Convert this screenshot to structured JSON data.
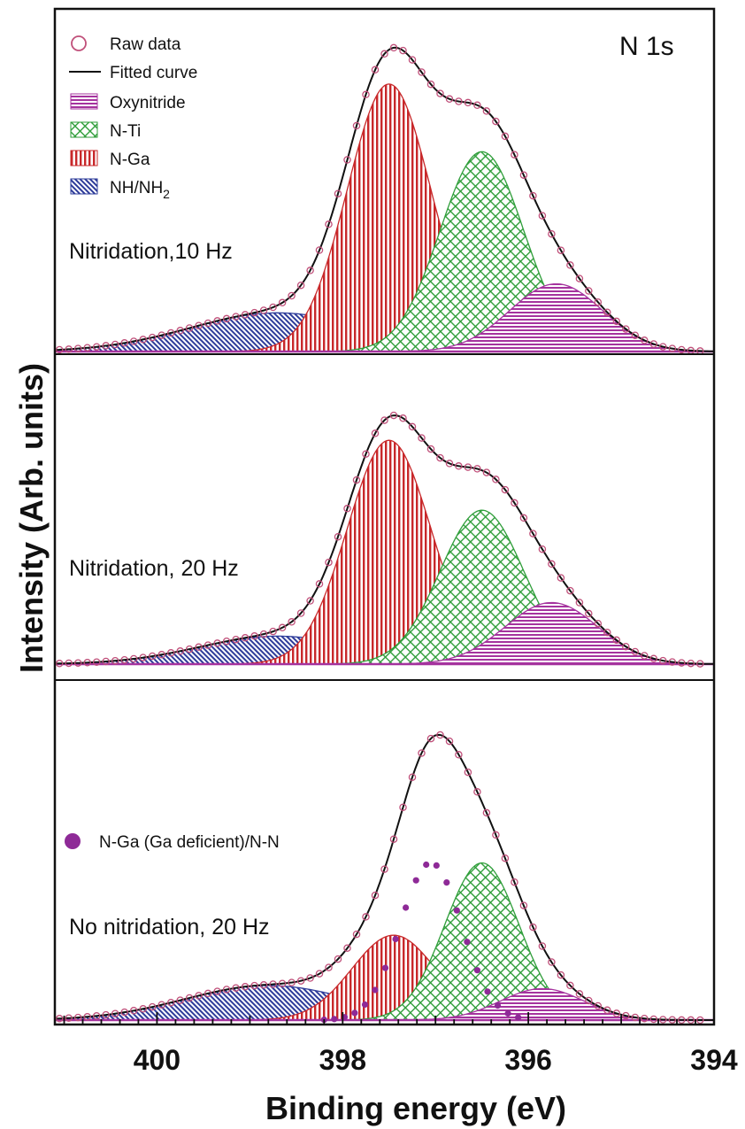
{
  "chart_data": {
    "type": "area",
    "title": "",
    "core_level_label": "N 1s",
    "xlabel": "Binding energy (eV)",
    "ylabel": "Intensity (Arb. units)",
    "x_reversed": true,
    "xlim": [
      401.1,
      394
    ],
    "x_ticks": [
      400,
      398,
      396,
      394
    ],
    "x_tick_labels": [
      "400",
      "398",
      "396",
      "394"
    ],
    "y_units": "arbitrary (relative 0-1 per panel)",
    "legend_placement": "top-left",
    "legend": [
      {
        "key": "raw",
        "label": "Raw data",
        "marker": "open-circle"
      },
      {
        "key": "fit",
        "label": "Fitted curve",
        "marker": "line"
      },
      {
        "key": "oxynitride",
        "label": "Oxynitride",
        "marker": "horizontal-hatch"
      },
      {
        "key": "nti",
        "label": "N-Ti",
        "marker": "crosshatch"
      },
      {
        "key": "nga",
        "label": "N-Ga",
        "marker": "vertical-hatch"
      },
      {
        "key": "nh",
        "label_main": "NH/NH",
        "label_sub": "2",
        "marker": "diagonal-hatch"
      }
    ],
    "extra_legend": {
      "label": "N-Ga (Ga deficient)/N-N",
      "marker": "filled-dot"
    },
    "colors": {
      "raw": "#c0507a",
      "fit": "#111111",
      "oxynitride": "#a5339e",
      "nti": "#2f9e3a",
      "nga": "#c8282a",
      "nh": "#2e3c9a",
      "ngadef": "#8e2a97"
    },
    "panels": [
      {
        "label": "Nitridation,10 Hz",
        "peaks": [
          {
            "component": "nh",
            "center": 398.7,
            "height": 0.12,
            "width": 0.95
          },
          {
            "component": "nga",
            "center": 397.5,
            "height": 0.83,
            "width": 0.45
          },
          {
            "component": "nti",
            "center": 396.5,
            "height": 0.62,
            "width": 0.45
          },
          {
            "component": "oxynitride",
            "center": 395.7,
            "height": 0.21,
            "width": 0.5
          }
        ]
      },
      {
        "label": "Nitridation, 20 Hz",
        "peaks": [
          {
            "component": "nh",
            "center": 398.7,
            "height": 0.1,
            "width": 0.85
          },
          {
            "component": "nga",
            "center": 397.5,
            "height": 0.8,
            "width": 0.45
          },
          {
            "component": "nti",
            "center": 396.5,
            "height": 0.55,
            "width": 0.45
          },
          {
            "component": "oxynitride",
            "center": 395.75,
            "height": 0.22,
            "width": 0.5
          }
        ]
      },
      {
        "label": "No nitridation, 20 Hz",
        "peaks": [
          {
            "component": "nh",
            "center": 398.8,
            "height": 0.11,
            "width": 0.9
          },
          {
            "component": "nga",
            "center": 397.45,
            "height": 0.27,
            "width": 0.45
          },
          {
            "component": "nti",
            "center": 396.5,
            "height": 0.5,
            "width": 0.4
          },
          {
            "component": "oxynitride",
            "center": 395.85,
            "height": 0.1,
            "width": 0.45
          },
          {
            "component": "ngadef",
            "center": 397.05,
            "height": 0.5,
            "width": 0.33
          }
        ]
      }
    ]
  }
}
